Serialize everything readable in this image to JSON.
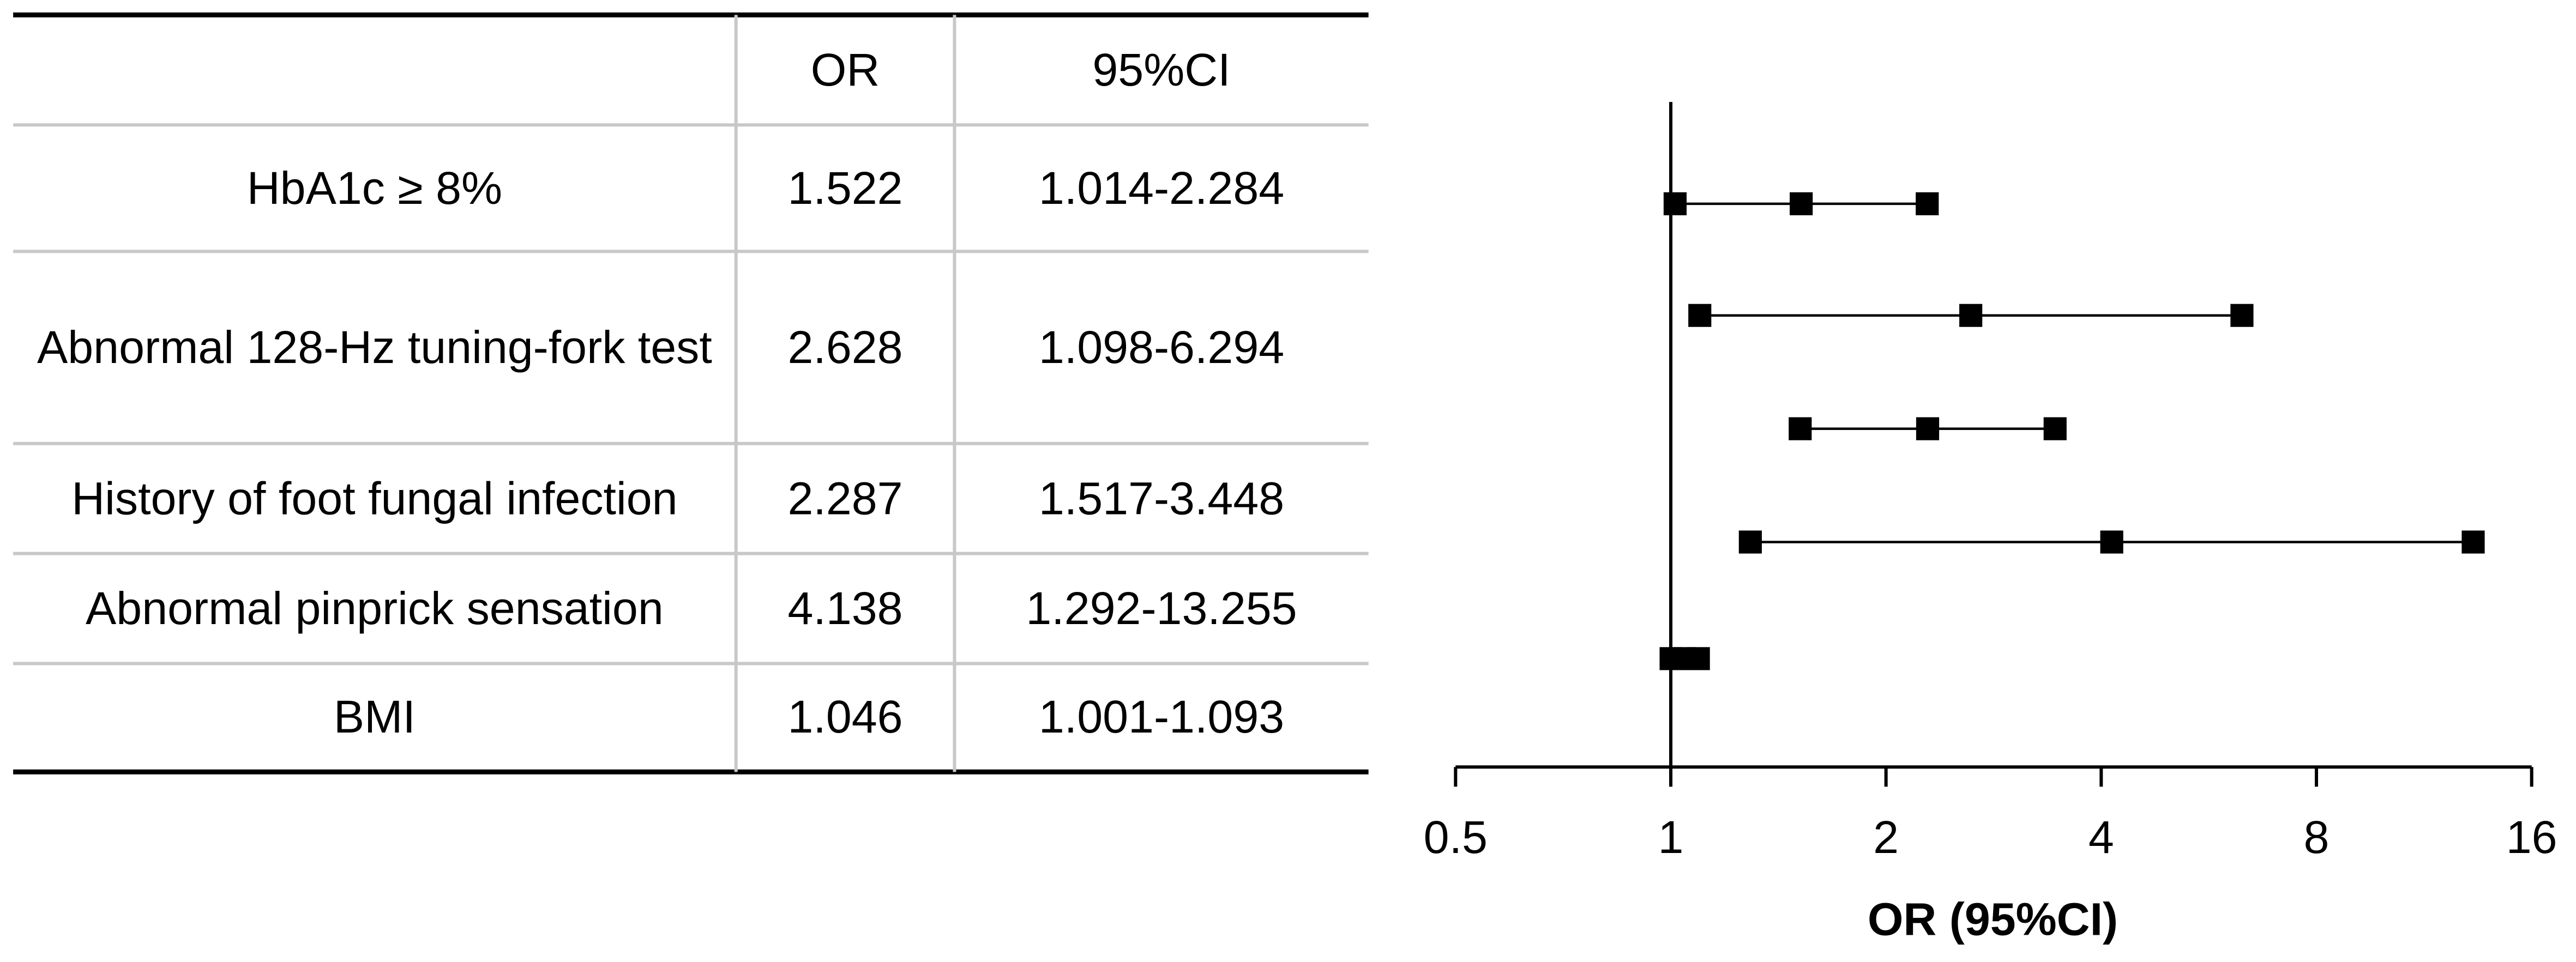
{
  "chart_data": {
    "type": "forest",
    "column_headers": [
      "OR",
      "95%CI"
    ],
    "categories": [
      "HbA1c ≥ 8%",
      "Abnormal 128-Hz tuning-fork test",
      "History of foot fungal infection",
      "Abnormal pinprick sensation",
      "BMI"
    ],
    "values": [
      1.522,
      2.628,
      2.287,
      4.138,
      1.046
    ],
    "ci_low": [
      1.014,
      1.098,
      1.517,
      1.292,
      1.001
    ],
    "ci_high": [
      2.284,
      6.294,
      3.448,
      13.255,
      1.093
    ],
    "ci_labels": [
      "1.014-2.284",
      "1.098-6.294",
      "1.517-3.448",
      "1.292-13.255",
      "1.001-1.093"
    ],
    "xlim": [
      0.5,
      16
    ],
    "xticks": [
      0.5,
      1,
      2,
      4,
      8,
      16
    ],
    "log_base": 2,
    "reference": 1,
    "x_label": "OR (95%CI)",
    "color": "#000000"
  }
}
